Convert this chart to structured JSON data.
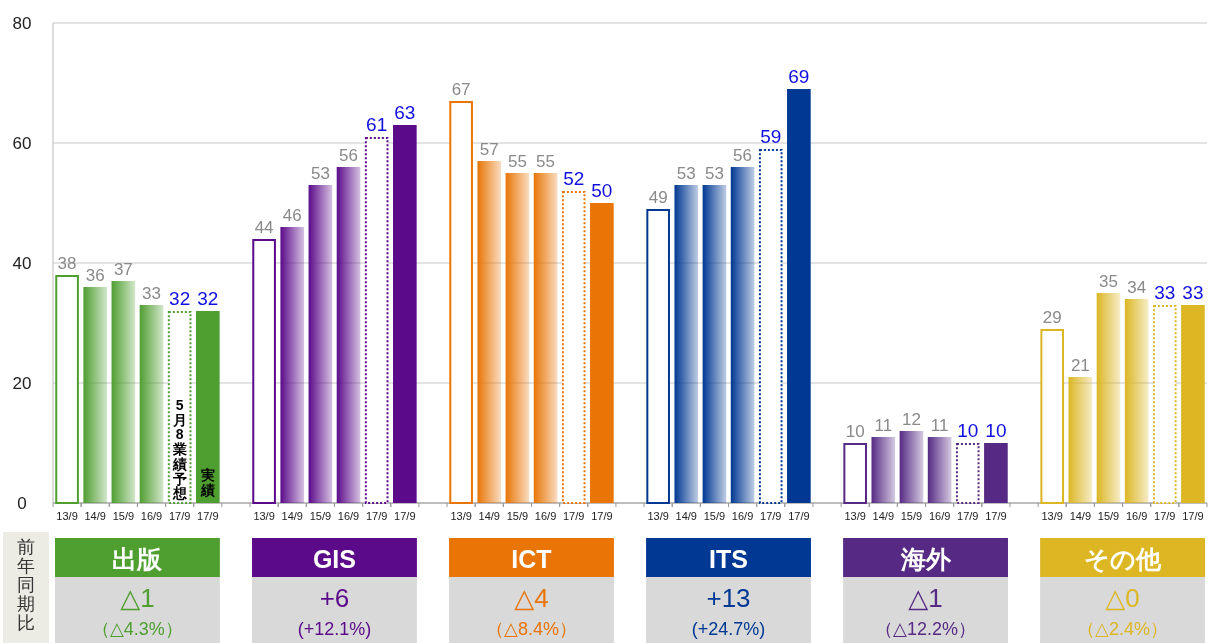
{
  "chart_data": {
    "type": "bar",
    "categories": [
      "13/9",
      "14/9",
      "15/9",
      "16/9",
      "17/9",
      "17/9",
      null,
      "13/9",
      "14/9",
      "15/9",
      "16/9",
      "17/9",
      "17/9",
      null,
      "13/9",
      "14/9",
      "15/9",
      "16/9",
      "17/9",
      "17/9",
      null,
      "13/9",
      "14/9",
      "15/9",
      "16/9",
      "17/9",
      "17/9",
      null,
      "13/9",
      "14/9",
      "15/9",
      "16/9",
      "17/9",
      "17/9",
      null,
      "13/9",
      "14/9",
      "15/9",
      "16/9",
      "17/9",
      "17/9"
    ],
    "values": [
      38,
      36,
      37,
      33,
      32,
      32,
      null,
      44,
      46,
      53,
      56,
      61,
      63,
      null,
      67,
      57,
      55,
      55,
      52,
      50,
      null,
      49,
      53,
      53,
      56,
      59,
      69,
      null,
      10,
      11,
      12,
      11,
      10,
      10,
      null,
      29,
      21,
      35,
      34,
      33,
      33
    ],
    "colors": [
      "#4f9e30",
      "#4f9e30",
      "#4f9e30",
      "#4f9e30",
      "#4f9e30",
      "#4f9e30",
      null,
      "#5b0a8a",
      "#5b0a8a",
      "#5b0a8a",
      "#5b0a8a",
      "#5b0a8a",
      "#5b0a8a",
      null,
      "#e87506",
      "#e87506",
      "#e87506",
      "#e87506",
      "#e87506",
      "#e87506",
      null,
      "#003893",
      "#003893",
      "#003893",
      "#003893",
      "#003893",
      "#003893",
      null,
      "#562a84",
      "#562a84",
      "#562a84",
      "#562a84",
      "#562a84",
      "#562a84",
      null,
      "#dcb623",
      "#dcb623",
      "#dcb623",
      "#dcb623",
      "#dcb623",
      "#dcb623"
    ],
    "ylim": [
      0,
      80
    ],
    "yticks": [
      0,
      20,
      40,
      60,
      80
    ],
    "grid": "y",
    "data_labels": true,
    "annotations": [
      "出版",
      "△1",
      "（△4.3%）",
      "GIS",
      "+6",
      "(+12.1%)",
      "ICT",
      "△4",
      "（△8.4%）",
      "ITS",
      "+13",
      "(+24.7%)",
      "海外",
      "△1",
      "（△12.2%）",
      "その他",
      "△0",
      "（△2.4%）",
      "前年同期比",
      "5月8業績予想",
      "実績"
    ]
  }
}
